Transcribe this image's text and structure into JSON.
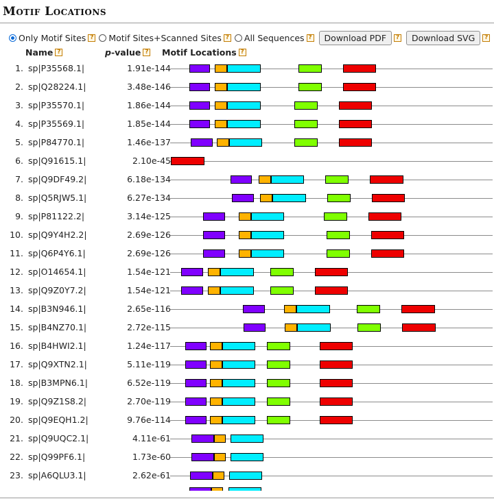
{
  "title": "Motif Locations",
  "options": {
    "only_sites": "Only Motif Sites",
    "sites_scanned": "Motif Sites+Scanned Sites",
    "all_sequences": "All Sequences",
    "download_pdf": "Download PDF",
    "download_svg": "Download SVG",
    "selected": "only_sites"
  },
  "headers": {
    "name": "Name",
    "pvalue_italic": "p",
    "pvalue_rest": "-value",
    "locations": "Motif Locations"
  },
  "help_glyph": "?",
  "motif_colors": {
    "m1": "#8000ff",
    "m2": "#ffb300",
    "m3": "#00eeff",
    "m4": "#80ff00",
    "m5": "#ee0000"
  },
  "rows": [
    {
      "num": "1.",
      "name": "sp|P35568.1|",
      "pvalue": "1.91e-144"
    },
    {
      "num": "2.",
      "name": "sp|Q28224.1|",
      "pvalue": "3.48e-146"
    },
    {
      "num": "3.",
      "name": "sp|P35570.1|",
      "pvalue": "1.86e-144"
    },
    {
      "num": "4.",
      "name": "sp|P35569.1|",
      "pvalue": "1.85e-144"
    },
    {
      "num": "5.",
      "name": "sp|P84770.1|",
      "pvalue": "1.46e-137"
    },
    {
      "num": "6.",
      "name": "sp|Q91615.1|",
      "pvalue": "2.10e-45"
    },
    {
      "num": "7.",
      "name": "sp|Q9DF49.2|",
      "pvalue": "6.18e-134"
    },
    {
      "num": "8.",
      "name": "sp|Q5RJW5.1|",
      "pvalue": "6.27e-134"
    },
    {
      "num": "9.",
      "name": "sp|P81122.2|",
      "pvalue": "3.14e-125"
    },
    {
      "num": "10.",
      "name": "sp|Q9Y4H2.2|",
      "pvalue": "2.69e-126"
    },
    {
      "num": "11.",
      "name": "sp|Q6P4Y6.1|",
      "pvalue": "2.69e-126"
    },
    {
      "num": "12.",
      "name": "sp|O14654.1|",
      "pvalue": "1.54e-121"
    },
    {
      "num": "13.",
      "name": "sp|Q9Z0Y7.2|",
      "pvalue": "1.54e-121"
    },
    {
      "num": "14.",
      "name": "sp|B3N946.1|",
      "pvalue": "2.65e-116"
    },
    {
      "num": "15.",
      "name": "sp|B4NZ70.1|",
      "pvalue": "2.72e-115"
    },
    {
      "num": "16.",
      "name": "sp|B4HWI2.1|",
      "pvalue": "1.24e-117"
    },
    {
      "num": "17.",
      "name": "sp|Q9XTN2.1|",
      "pvalue": "5.11e-119"
    },
    {
      "num": "18.",
      "name": "sp|B3MPN6.1|",
      "pvalue": "6.52e-119"
    },
    {
      "num": "19.",
      "name": "sp|Q9Z1S8.2|",
      "pvalue": "2.70e-119"
    },
    {
      "num": "20.",
      "name": "sp|Q9EQH1.2|",
      "pvalue": "9.76e-114"
    },
    {
      "num": "21.",
      "name": "sp|Q9UQC2.1|",
      "pvalue": "4.11e-61"
    },
    {
      "num": "22.",
      "name": "sp|Q99PF6.1|",
      "pvalue": "1.73e-60"
    },
    {
      "num": "23.",
      "name": "sp|A6QLU3.1|",
      "pvalue": "2.62e-61"
    }
  ]
}
